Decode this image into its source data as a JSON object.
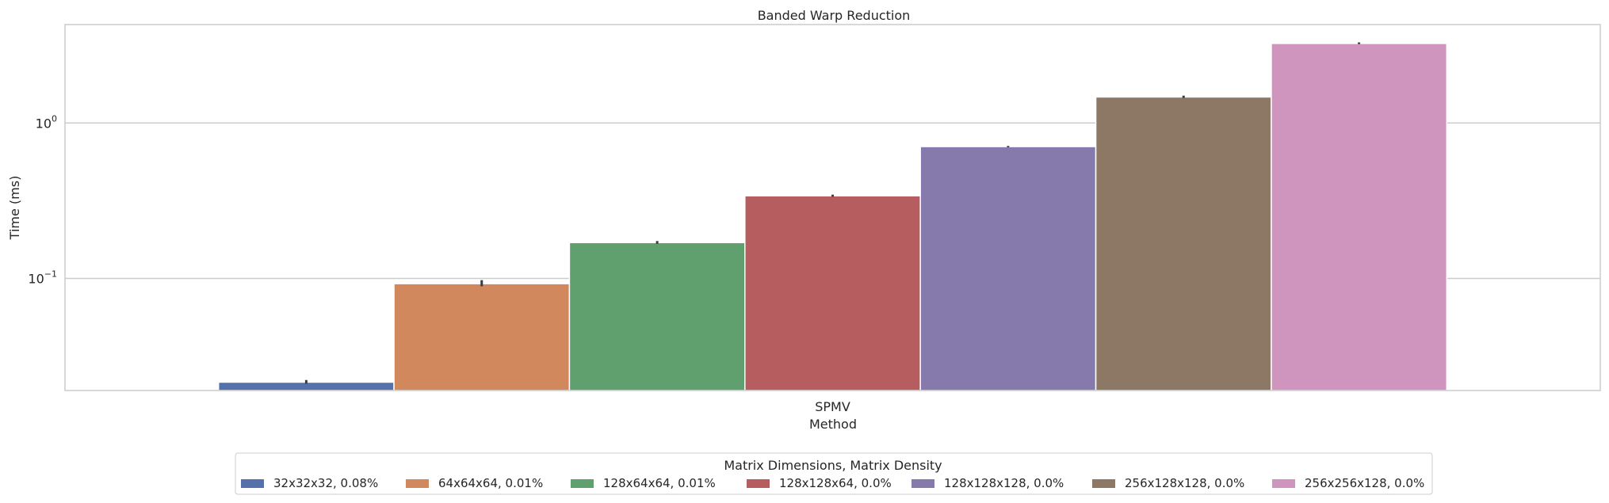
{
  "chart_data": {
    "type": "bar",
    "title": "Banded Warp Reduction",
    "xlabel": "Method",
    "ylabel": "Time (ms)",
    "yscale": "log",
    "ylim": [
      0.019,
      4.3
    ],
    "yticks": [
      {
        "value": 1,
        "base": "10",
        "exp": "0"
      },
      {
        "value": 0.1,
        "base": "10",
        "exp": "−1"
      }
    ],
    "categories": [
      "SPMV"
    ],
    "grid": true,
    "legend": {
      "title": "Matrix Dimensions, Matrix Density",
      "placement": "bottom-center"
    },
    "series": [
      {
        "name": "32x32x32, 0.08%",
        "values": [
          0.0215
        ],
        "err_low": [
          0.021
        ],
        "err_high": [
          0.0222
        ],
        "color": "#5471ab"
      },
      {
        "name": "64x64x64, 0.01%",
        "values": [
          0.0925
        ],
        "err_low": [
          0.089
        ],
        "err_high": [
          0.0975
        ],
        "color": "#d1885c"
      },
      {
        "name": "128x64x64, 0.01%",
        "values": [
          0.17
        ],
        "err_low": [
          0.167
        ],
        "err_high": [
          0.174
        ],
        "color": "#5fa06e"
      },
      {
        "name": "128x128x64, 0.0%",
        "values": [
          0.34
        ],
        "err_low": [
          0.335
        ],
        "err_high": [
          0.346
        ],
        "color": "#b65d60"
      },
      {
        "name": "128x128x128, 0.0%",
        "values": [
          0.705
        ],
        "err_low": [
          0.698
        ],
        "err_high": [
          0.712
        ],
        "color": "#857aab"
      },
      {
        "name": "256x128x128, 0.0%",
        "values": [
          1.47
        ],
        "err_low": [
          1.45
        ],
        "err_high": [
          1.5
        ],
        "color": "#8d7866"
      },
      {
        "name": "256x256x128, 0.0%",
        "values": [
          3.25
        ],
        "err_low": [
          3.22
        ],
        "err_high": [
          3.3
        ],
        "color": "#d095bf"
      }
    ]
  }
}
